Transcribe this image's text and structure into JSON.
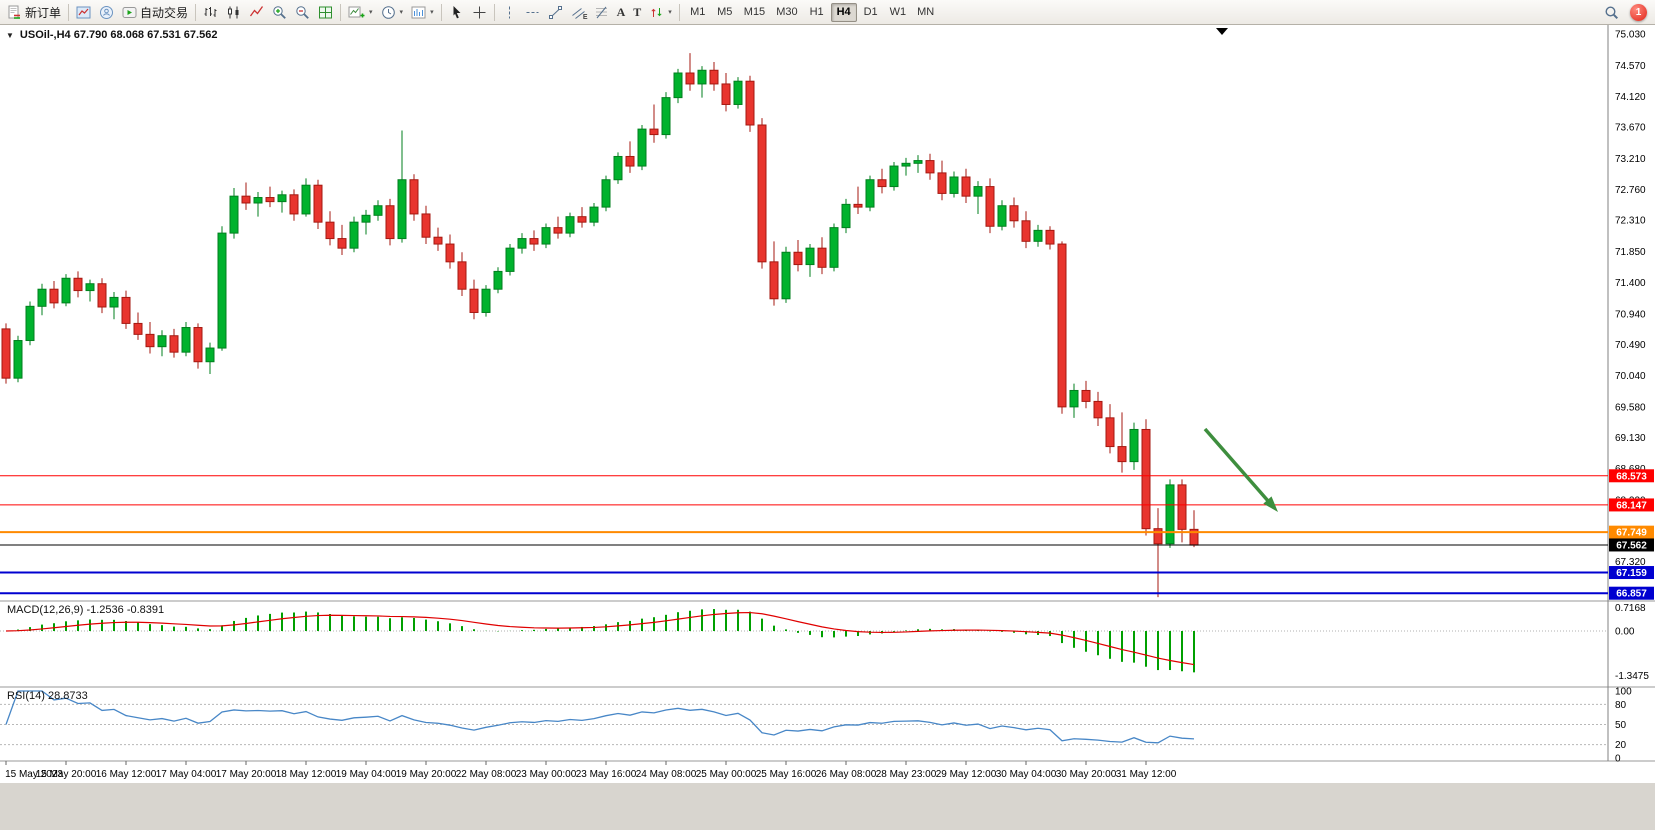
{
  "toolbar": {
    "new_order_label": "新订单",
    "auto_trading_label": "自动交易",
    "text_tool_a": "A",
    "text_tool_t": "T",
    "channel_tool_e": "E",
    "timeframes": [
      "M1",
      "M5",
      "M15",
      "M30",
      "H1",
      "H4",
      "D1",
      "W1",
      "MN"
    ],
    "active_timeframe": "H4",
    "notification_count": "1"
  },
  "chart_header": {
    "symbol_ohlc_label": "USOil-,H4 67.790 68.068 67.531 67.562"
  },
  "macd": {
    "label": "MACD(12,26,9) -1.2536 -0.8391",
    "scale_labels": [
      {
        "label": "0.7168",
        "value": 0.7168
      },
      {
        "label": "0.00",
        "value": 0
      },
      {
        "label": "-1.3475",
        "value": -1.3475
      }
    ],
    "histogram_color": "#00A000",
    "signal_color": "#E00000"
  },
  "rsi": {
    "label": "RSI(14) 28.8733",
    "scale_labels": [
      {
        "label": "100",
        "value": 100
      },
      {
        "label": "80",
        "value": 80
      },
      {
        "label": "50",
        "value": 50
      },
      {
        "label": "20",
        "value": 20
      },
      {
        "label": "0",
        "value": 0
      }
    ],
    "levels": [
      80,
      50,
      20
    ],
    "line_color": "#4887C7"
  },
  "chart_data": {
    "type": "candlestick",
    "symbol": "USOil",
    "timeframe": "H4",
    "ohlc_current": {
      "open": "67.790",
      "high": "68.068",
      "low": "67.531",
      "close": "67.562"
    },
    "price_axis_labels": [
      "75.030",
      "74.570",
      "74.120",
      "73.670",
      "73.210",
      "72.760",
      "72.310",
      "71.850",
      "71.400",
      "70.940",
      "70.490",
      "70.040",
      "69.580",
      "69.130",
      "68.680",
      "68.220",
      "67.770",
      "67.320",
      "66.860"
    ],
    "time_labels": [
      "15 May 2023",
      "15 May 20:00",
      "16 May 12:00",
      "17 May 04:00",
      "17 May 20:00",
      "18 May 12:00",
      "19 May 04:00",
      "19 May 20:00",
      "22 May 08:00",
      "23 May 00:00",
      "23 May 16:00",
      "24 May 08:00",
      "25 May 00:00",
      "25 May 16:00",
      "26 May 08:00",
      "28 May 23:00",
      "29 May 12:00",
      "30 May 04:00",
      "30 May 20:00",
      "31 May 12:00"
    ],
    "price_lines": [
      {
        "label": "68.573",
        "price": 68.573,
        "color": "#FF0000",
        "width": 1,
        "name": "resistance-line-68573"
      },
      {
        "label": "68.147",
        "price": 68.147,
        "color": "#FF0000",
        "width": 1,
        "name": "resistance-line-68147"
      },
      {
        "label": "67.749",
        "price": 67.749,
        "color": "#FF8A00",
        "width": 2,
        "name": "support-line-orange-67749"
      },
      {
        "label": "67.562",
        "price": 67.562,
        "color": "#000000",
        "width": 1,
        "name": "bid-price-line-67562"
      },
      {
        "label": "67.159",
        "price": 67.159,
        "color": "#0000D0",
        "width": 2,
        "name": "support-line-blue-67159"
      },
      {
        "label": "66.857",
        "price": 66.857,
        "color": "#0000D0",
        "width": 2,
        "name": "support-line-blue-66857"
      }
    ],
    "candle_colors": {
      "up": "#00B22D",
      "up_border": "#007F1E",
      "down": "#E8352E",
      "down_border": "#A51810"
    },
    "annotation_arrow": {
      "description": "green arrow pointing down-right toward 68.147 line",
      "color": "#3E8E3E"
    },
    "indicators": [
      {
        "type": "MACD",
        "params": [
          12,
          26,
          9
        ],
        "last_values": [
          -1.2536,
          -0.8391
        ]
      },
      {
        "type": "RSI",
        "params": [
          14
        ],
        "last_value": 28.8733
      }
    ],
    "candles": [
      [
        70.72,
        70.8,
        69.92,
        70.0
      ],
      [
        70.0,
        70.62,
        69.94,
        70.55
      ],
      [
        70.55,
        71.12,
        70.48,
        71.05
      ],
      [
        71.05,
        71.38,
        70.92,
        71.3
      ],
      [
        71.3,
        71.42,
        71.02,
        71.1
      ],
      [
        71.1,
        71.52,
        71.05,
        71.46
      ],
      [
        71.46,
        71.56,
        71.18,
        71.28
      ],
      [
        71.28,
        71.44,
        71.12,
        71.38
      ],
      [
        71.38,
        71.46,
        70.95,
        71.04
      ],
      [
        71.04,
        71.26,
        70.86,
        71.18
      ],
      [
        71.18,
        71.28,
        70.72,
        70.8
      ],
      [
        70.8,
        70.96,
        70.56,
        70.64
      ],
      [
        70.64,
        70.82,
        70.36,
        70.46
      ],
      [
        70.46,
        70.7,
        70.32,
        70.62
      ],
      [
        70.62,
        70.72,
        70.3,
        70.38
      ],
      [
        70.38,
        70.82,
        70.32,
        70.74
      ],
      [
        70.74,
        70.8,
        70.14,
        70.24
      ],
      [
        70.24,
        70.52,
        70.06,
        70.44
      ],
      [
        70.44,
        72.22,
        70.4,
        72.12
      ],
      [
        72.12,
        72.78,
        72.04,
        72.66
      ],
      [
        72.66,
        72.86,
        72.46,
        72.56
      ],
      [
        72.56,
        72.72,
        72.36,
        72.64
      ],
      [
        72.64,
        72.8,
        72.5,
        72.58
      ],
      [
        72.58,
        72.74,
        72.42,
        72.68
      ],
      [
        72.68,
        72.76,
        72.3,
        72.4
      ],
      [
        72.4,
        72.92,
        72.36,
        72.82
      ],
      [
        72.82,
        72.9,
        72.18,
        72.28
      ],
      [
        72.28,
        72.44,
        71.94,
        72.04
      ],
      [
        72.04,
        72.24,
        71.8,
        71.9
      ],
      [
        71.9,
        72.36,
        71.84,
        72.28
      ],
      [
        72.28,
        72.46,
        72.1,
        72.38
      ],
      [
        72.38,
        72.6,
        72.3,
        72.52
      ],
      [
        72.52,
        72.62,
        71.94,
        72.04
      ],
      [
        72.04,
        73.62,
        71.98,
        72.9
      ],
      [
        72.9,
        72.98,
        72.3,
        72.4
      ],
      [
        72.4,
        72.52,
        71.96,
        72.06
      ],
      [
        72.06,
        72.2,
        71.86,
        71.96
      ],
      [
        71.96,
        72.1,
        71.6,
        71.7
      ],
      [
        71.7,
        71.84,
        71.2,
        71.3
      ],
      [
        71.3,
        71.44,
        70.86,
        70.96
      ],
      [
        70.96,
        71.36,
        70.9,
        71.3
      ],
      [
        71.3,
        71.62,
        71.24,
        71.56
      ],
      [
        71.56,
        71.96,
        71.5,
        71.9
      ],
      [
        71.9,
        72.12,
        71.82,
        72.04
      ],
      [
        72.04,
        72.16,
        71.86,
        71.96
      ],
      [
        71.96,
        72.26,
        71.9,
        72.2
      ],
      [
        72.2,
        72.36,
        72.04,
        72.12
      ],
      [
        72.12,
        72.42,
        72.06,
        72.36
      ],
      [
        72.36,
        72.5,
        72.2,
        72.28
      ],
      [
        72.28,
        72.56,
        72.22,
        72.5
      ],
      [
        72.5,
        72.96,
        72.44,
        72.9
      ],
      [
        72.9,
        73.3,
        72.84,
        73.24
      ],
      [
        73.24,
        73.46,
        73.0,
        73.1
      ],
      [
        73.1,
        73.7,
        73.04,
        73.64
      ],
      [
        73.64,
        74.0,
        73.44,
        73.56
      ],
      [
        73.56,
        74.18,
        73.5,
        74.1
      ],
      [
        74.1,
        74.52,
        74.02,
        74.46
      ],
      [
        74.46,
        74.75,
        74.2,
        74.3
      ],
      [
        74.3,
        74.56,
        74.1,
        74.5
      ],
      [
        74.5,
        74.62,
        74.2,
        74.3
      ],
      [
        74.3,
        74.46,
        73.9,
        74.0
      ],
      [
        74.0,
        74.4,
        73.94,
        74.34
      ],
      [
        74.34,
        74.42,
        73.6,
        73.7
      ],
      [
        73.7,
        73.8,
        71.6,
        71.7
      ],
      [
        71.7,
        72.0,
        71.06,
        71.16
      ],
      [
        71.16,
        71.92,
        71.1,
        71.84
      ],
      [
        71.84,
        72.02,
        71.56,
        71.66
      ],
      [
        71.66,
        71.96,
        71.48,
        71.9
      ],
      [
        71.9,
        72.06,
        71.52,
        71.62
      ],
      [
        71.62,
        72.26,
        71.56,
        72.2
      ],
      [
        72.2,
        72.62,
        72.12,
        72.54
      ],
      [
        72.54,
        72.8,
        72.4,
        72.5
      ],
      [
        72.5,
        72.96,
        72.44,
        72.9
      ],
      [
        72.9,
        73.06,
        72.7,
        72.8
      ],
      [
        72.8,
        73.16,
        72.74,
        73.1
      ],
      [
        73.1,
        73.22,
        72.96,
        73.14
      ],
      [
        73.14,
        73.26,
        73.0,
        73.18
      ],
      [
        73.18,
        73.28,
        72.9,
        73.0
      ],
      [
        73.0,
        73.18,
        72.6,
        72.7
      ],
      [
        72.7,
        73.02,
        72.64,
        72.94
      ],
      [
        72.94,
        73.06,
        72.56,
        72.66
      ],
      [
        72.66,
        72.88,
        72.4,
        72.8
      ],
      [
        72.8,
        72.92,
        72.12,
        72.22
      ],
      [
        72.22,
        72.6,
        72.16,
        72.52
      ],
      [
        72.52,
        72.64,
        72.2,
        72.3
      ],
      [
        72.3,
        72.44,
        71.9,
        72.0
      ],
      [
        72.0,
        72.24,
        71.92,
        72.16
      ],
      [
        72.16,
        72.22,
        71.88,
        71.96
      ],
      [
        71.96,
        72.0,
        69.48,
        69.58
      ],
      [
        69.58,
        69.92,
        69.42,
        69.82
      ],
      [
        69.82,
        69.96,
        69.56,
        69.66
      ],
      [
        69.66,
        69.8,
        69.3,
        69.42
      ],
      [
        69.42,
        69.62,
        68.9,
        69.0
      ],
      [
        69.0,
        69.5,
        68.62,
        68.78
      ],
      [
        68.78,
        69.35,
        68.66,
        69.25
      ],
      [
        69.25,
        69.4,
        67.7,
        67.8
      ],
      [
        67.8,
        68.1,
        66.8,
        67.58
      ],
      [
        67.58,
        68.52,
        67.52,
        68.44
      ],
      [
        68.44,
        68.52,
        67.6,
        67.79
      ],
      [
        67.79,
        68.07,
        67.53,
        67.56
      ]
    ]
  }
}
